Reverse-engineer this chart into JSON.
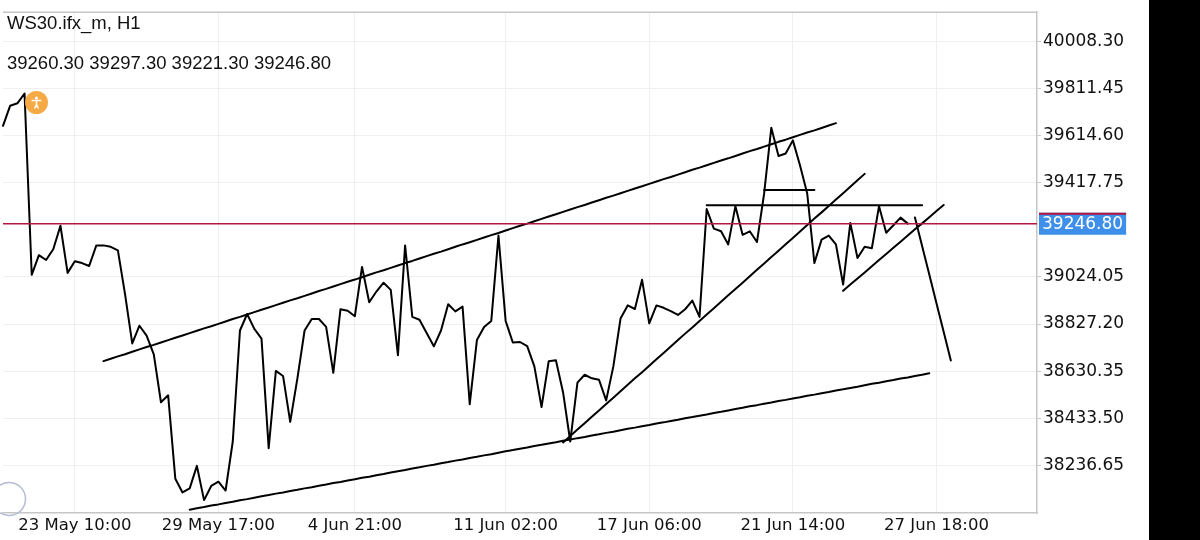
{
  "chart_data": {
    "type": "line",
    "title": "WS30.ifx_m, H1",
    "annotations": [
      "39260.30 39297.30 39221.30 39246.80"
    ],
    "categories": [
      null,
      null,
      null,
      null,
      null,
      null,
      null,
      null,
      null,
      null,
      "23 May 10:00",
      null,
      null,
      null,
      null,
      null,
      null,
      null,
      null,
      null,
      null,
      null,
      null,
      null,
      null,
      null,
      null,
      null,
      null,
      null,
      "29 May 17:00",
      null,
      null,
      null,
      null,
      null,
      null,
      null,
      null,
      null,
      null,
      null,
      null,
      null,
      null,
      null,
      null,
      null,
      null,
      "4 Jun 21:00",
      null,
      null,
      null,
      null,
      null,
      null,
      null,
      null,
      null,
      null,
      null,
      null,
      null,
      null,
      null,
      null,
      null,
      null,
      null,
      null,
      "11 Jun 02:00",
      null,
      null,
      null,
      null,
      null,
      null,
      null,
      null,
      null,
      null,
      null,
      null,
      null,
      null,
      null,
      null,
      null,
      null,
      null,
      "17 Jun 06:00",
      null,
      null,
      null,
      null,
      null,
      null,
      null,
      null,
      null,
      null,
      null,
      null,
      null,
      null,
      null,
      null,
      null,
      null,
      null,
      "21 Jun 14:00",
      null,
      null,
      null,
      null,
      null,
      null,
      null,
      null,
      null,
      null,
      null,
      null,
      null,
      null,
      null,
      null,
      null,
      null,
      null,
      "27 Jun 18:00",
      null,
      null,
      null,
      null,
      null,
      null,
      null,
      null,
      null,
      null,
      null,
      null,
      null,
      null
    ],
    "series": [
      {
        "color": "#000000",
        "values": [
          39656,
          39740,
          39750,
          39791,
          39033,
          39115,
          39095,
          39140,
          39238,
          39041,
          39090,
          39082,
          39070,
          39156,
          39156,
          39150,
          39135,
          38951,
          38746,
          38820,
          38779,
          38700,
          38500,
          38529,
          38180,
          38123,
          38140,
          38234,
          38091,
          38150,
          38168,
          38131,
          38336,
          38800,
          38869,
          38807,
          38766,
          38308,
          38631,
          38610,
          38418,
          38600,
          38800,
          38848,
          38848,
          38815,
          38623,
          38889,
          38883,
          38860,
          39066,
          38918,
          38963,
          39000,
          38970,
          38697,
          39156,
          38857,
          38845,
          38790,
          38734,
          38800,
          38910,
          38880,
          38900,
          38492,
          38760,
          38815,
          38840,
          39197,
          38840,
          38750,
          38752,
          38735,
          38650,
          38480,
          38672,
          38676,
          38541,
          38336,
          38582,
          38615,
          38600,
          38594,
          38508,
          38650,
          38850,
          38905,
          38890,
          39012,
          38830,
          38905,
          38895,
          38881,
          38865,
          38889,
          38925,
          38857,
          39308,
          39226,
          39215,
          39160,
          39320,
          39200,
          39215,
          39170,
          39373,
          39648,
          39530,
          39540,
          39595,
          39490,
          39373,
          39082,
          39180,
          39197,
          39160,
          38992,
          39250,
          39103,
          39150,
          39144,
          39320,
          39209,
          39240,
          39272,
          39247,
          null,
          null,
          null,
          null,
          null,
          null,
          null,
          null,
          null,
          null,
          null,
          null,
          null,
          null,
          null,
          null,
          null,
          null
        ]
      },
      {
        "color": "#000000",
        "values": [
          null,
          null,
          null,
          null,
          null,
          null,
          null,
          null,
          null,
          null,
          null,
          null,
          null,
          null,
          38672,
          38682,
          38692,
          38701,
          38711,
          38721,
          38731,
          38740,
          38750,
          38760,
          38770,
          38779,
          38789,
          38799,
          38809,
          38818,
          38828,
          38838,
          38848,
          38857,
          38867,
          38877,
          38887,
          38896,
          38906,
          38916,
          38926,
          38935,
          38945,
          38955,
          38965,
          38974,
          38984,
          38994,
          39004,
          39013,
          39023,
          39033,
          39043,
          39052,
          39062,
          39072,
          39082,
          39091,
          39101,
          39111,
          39121,
          39130,
          39140,
          39150,
          39160,
          39169,
          39179,
          39189,
          39199,
          39208,
          39218,
          39228,
          39238,
          39247,
          39257,
          39267,
          39277,
          39286,
          39296,
          39306,
          39316,
          39325,
          39335,
          39345,
          39355,
          39364,
          39374,
          39384,
          39394,
          39403,
          39413,
          39423,
          39433,
          39442,
          39452,
          39462,
          39472,
          39481,
          39491,
          39501,
          39511,
          39520,
          39530,
          39540,
          39550,
          39559,
          39569,
          39579,
          39589,
          39598,
          39608,
          39618,
          39628,
          39637,
          39647,
          39657,
          39667,
          null,
          null,
          null,
          null,
          null,
          null,
          null,
          null,
          null,
          null,
          null,
          null,
          null,
          null,
          null,
          null,
          null,
          null,
          null,
          null,
          null,
          null,
          null,
          null,
          null,
          null,
          null,
          null
        ]
      },
      {
        "color": "#000000",
        "values": [
          null,
          null,
          null,
          null,
          null,
          null,
          null,
          null,
          null,
          null,
          null,
          null,
          null,
          null,
          null,
          null,
          null,
          null,
          null,
          null,
          null,
          null,
          null,
          null,
          null,
          null,
          38051,
          38057,
          38062,
          38068,
          38073,
          38079,
          38084,
          38090,
          38095,
          38101,
          38107,
          38112,
          38118,
          38123,
          38129,
          38134,
          38140,
          38145,
          38151,
          38156,
          38162,
          38167,
          38173,
          38178,
          38184,
          38189,
          38195,
          38200,
          38206,
          38212,
          38217,
          38223,
          38228,
          38234,
          38239,
          38245,
          38250,
          38256,
          38261,
          38267,
          38272,
          38278,
          38283,
          38289,
          38295,
          38300,
          38306,
          38311,
          38317,
          38322,
          38328,
          38333,
          38339,
          38344,
          38350,
          38355,
          38361,
          38366,
          38372,
          38377,
          38383,
          38389,
          38394,
          38400,
          38405,
          38411,
          38416,
          38422,
          38427,
          38433,
          38438,
          38444,
          38449,
          38455,
          38460,
          38466,
          38472,
          38477,
          38483,
          38488,
          38494,
          38499,
          38505,
          38510,
          38516,
          38521,
          38527,
          38532,
          38538,
          38543,
          38549,
          38554,
          38560,
          38565,
          38571,
          38577,
          38582,
          38588,
          38593,
          38599,
          38604,
          38610,
          38615,
          38621,
          null,
          null,
          null,
          null,
          null,
          null,
          null,
          null,
          null,
          null,
          null,
          null,
          null,
          null,
          null
        ]
      },
      {
        "color": "#000000",
        "values": [
          null,
          null,
          null,
          null,
          null,
          null,
          null,
          null,
          null,
          null,
          null,
          null,
          null,
          null,
          null,
          null,
          null,
          null,
          null,
          null,
          null,
          null,
          null,
          null,
          null,
          null,
          null,
          null,
          null,
          null,
          null,
          null,
          null,
          null,
          null,
          null,
          null,
          null,
          null,
          null,
          null,
          null,
          null,
          null,
          null,
          null,
          null,
          null,
          null,
          null,
          null,
          null,
          null,
          null,
          null,
          null,
          null,
          null,
          null,
          null,
          null,
          null,
          null,
          null,
          null,
          null,
          null,
          null,
          null,
          null,
          null,
          null,
          null,
          null,
          null,
          null,
          null,
          null,
          38332,
          38359,
          38386,
          38412,
          38439,
          38466,
          38493,
          38519,
          38546,
          38573,
          38600,
          38626,
          38653,
          38680,
          38706,
          38733,
          38760,
          38787,
          38813,
          38840,
          38867,
          38893,
          38920,
          38947,
          38974,
          39000,
          39027,
          39054,
          39080,
          39107,
          39134,
          39161,
          39187,
          39214,
          39241,
          39268,
          39294,
          39321,
          39348,
          39374,
          39401,
          39428,
          39455,
          null,
          null,
          null,
          null,
          null,
          null,
          null,
          null,
          null,
          null,
          null,
          null,
          null,
          null,
          null,
          null,
          null,
          null,
          null,
          null,
          null,
          null,
          null,
          null
        ]
      },
      {
        "color": "#000000",
        "values": [
          null,
          null,
          null,
          null,
          null,
          null,
          null,
          null,
          null,
          null,
          null,
          null,
          null,
          null,
          null,
          null,
          null,
          null,
          null,
          null,
          null,
          null,
          null,
          null,
          null,
          null,
          null,
          null,
          null,
          null,
          null,
          null,
          null,
          null,
          null,
          null,
          null,
          null,
          null,
          null,
          null,
          null,
          null,
          null,
          null,
          null,
          null,
          null,
          null,
          null,
          null,
          null,
          null,
          null,
          null,
          null,
          null,
          null,
          null,
          null,
          null,
          null,
          null,
          null,
          null,
          null,
          null,
          null,
          null,
          null,
          null,
          null,
          null,
          null,
          null,
          null,
          null,
          null,
          null,
          null,
          null,
          null,
          null,
          null,
          null,
          null,
          null,
          null,
          null,
          null,
          null,
          null,
          null,
          null,
          null,
          null,
          null,
          null,
          39324,
          39324,
          39324,
          39324,
          39324,
          39324,
          39324,
          39324,
          39324,
          39324,
          39324,
          39324,
          39324,
          39324,
          39324,
          39324,
          39324,
          39324,
          39324,
          39324,
          39324,
          39324,
          39324,
          39324,
          39324,
          39324,
          39324,
          39324,
          39324,
          39324,
          39324,
          null,
          null,
          null,
          null,
          null,
          null,
          null,
          null,
          null,
          null,
          null,
          null,
          null,
          null,
          null,
          null
        ]
      },
      {
        "color": "#000000",
        "values": [
          null,
          null,
          null,
          null,
          null,
          null,
          null,
          null,
          null,
          null,
          null,
          null,
          null,
          null,
          null,
          null,
          null,
          null,
          null,
          null,
          null,
          null,
          null,
          null,
          null,
          null,
          null,
          null,
          null,
          null,
          null,
          null,
          null,
          null,
          null,
          null,
          null,
          null,
          null,
          null,
          null,
          null,
          null,
          null,
          null,
          null,
          null,
          null,
          null,
          null,
          null,
          null,
          null,
          null,
          null,
          null,
          null,
          null,
          null,
          null,
          null,
          null,
          null,
          null,
          null,
          null,
          null,
          null,
          null,
          null,
          null,
          null,
          null,
          null,
          null,
          null,
          null,
          null,
          null,
          null,
          null,
          null,
          null,
          null,
          null,
          null,
          null,
          null,
          null,
          null,
          null,
          null,
          null,
          null,
          null,
          null,
          null,
          null,
          null,
          null,
          null,
          null,
          null,
          null,
          null,
          null,
          39388,
          39388,
          39388,
          39388,
          39388,
          39388,
          39388,
          39388,
          null,
          null,
          null,
          null,
          null,
          null,
          null,
          null,
          null,
          null,
          null,
          null,
          null,
          null,
          null,
          null,
          null,
          null,
          null,
          null,
          null,
          null,
          null,
          null,
          null,
          null,
          null,
          null,
          null,
          null,
          null
        ]
      },
      {
        "color": "#000000",
        "values": [
          null,
          null,
          null,
          null,
          null,
          null,
          null,
          null,
          null,
          null,
          null,
          null,
          null,
          null,
          null,
          null,
          null,
          null,
          null,
          null,
          null,
          null,
          null,
          null,
          null,
          null,
          null,
          null,
          null,
          null,
          null,
          null,
          null,
          null,
          null,
          null,
          null,
          null,
          null,
          null,
          null,
          null,
          null,
          null,
          null,
          null,
          null,
          null,
          null,
          null,
          null,
          null,
          null,
          null,
          null,
          null,
          null,
          null,
          null,
          null,
          null,
          null,
          null,
          null,
          null,
          null,
          null,
          null,
          null,
          null,
          null,
          null,
          null,
          null,
          null,
          null,
          null,
          null,
          null,
          null,
          null,
          null,
          null,
          null,
          null,
          null,
          null,
          null,
          null,
          null,
          null,
          null,
          null,
          null,
          null,
          null,
          null,
          null,
          null,
          null,
          null,
          null,
          null,
          null,
          null,
          null,
          null,
          null,
          null,
          null,
          null,
          null,
          null,
          null,
          null,
          null,
          null,
          38966,
          38992,
          39018,
          39043,
          39069,
          39095,
          39120,
          39146,
          39171,
          39197,
          39223,
          39248,
          39274,
          39300,
          39325,
          null,
          null,
          null,
          null,
          null,
          null,
          null,
          null,
          null,
          null,
          null,
          null,
          null
        ]
      },
      {
        "color": "#000000",
        "values": [
          null,
          null,
          null,
          null,
          null,
          null,
          null,
          null,
          null,
          null,
          null,
          null,
          null,
          null,
          null,
          null,
          null,
          null,
          null,
          null,
          null,
          null,
          null,
          null,
          null,
          null,
          null,
          null,
          null,
          null,
          null,
          null,
          null,
          null,
          null,
          null,
          null,
          null,
          null,
          null,
          null,
          null,
          null,
          null,
          null,
          null,
          null,
          null,
          null,
          null,
          null,
          null,
          null,
          null,
          null,
          null,
          null,
          null,
          null,
          null,
          null,
          null,
          null,
          null,
          null,
          null,
          null,
          null,
          null,
          null,
          null,
          null,
          null,
          null,
          null,
          null,
          null,
          null,
          null,
          null,
          null,
          null,
          null,
          null,
          null,
          null,
          null,
          null,
          null,
          null,
          null,
          null,
          null,
          null,
          null,
          null,
          null,
          null,
          null,
          null,
          null,
          null,
          null,
          null,
          null,
          null,
          null,
          null,
          null,
          null,
          null,
          null,
          null,
          null,
          null,
          null,
          null,
          null,
          null,
          null,
          null,
          null,
          null,
          null,
          null,
          null,
          null,
          39273,
          39153,
          39034,
          38914,
          38795,
          38675,
          null,
          null,
          null,
          null,
          null,
          null,
          null,
          null,
          null,
          null,
          null,
          null
        ]
      }
    ],
    "ylim": [
      38037,
      40131
    ],
    "yticks": [
      {
        "value": 40008.3,
        "label": "40008.30"
      },
      39811.45,
      {
        "value": 39614.6,
        "label": "39614.60"
      },
      39417.75,
      39024.05,
      {
        "value": 38827.2,
        "label": "38827.20"
      },
      38630.35,
      {
        "value": 38433.5,
        "label": "38433.50"
      },
      38236.65
    ],
    "ref_lines": [
      {
        "axis": "y",
        "value": 39246.8,
        "label": "39246.80",
        "color": "#b3163f"
      }
    ],
    "grid": true,
    "marker": "none"
  }
}
